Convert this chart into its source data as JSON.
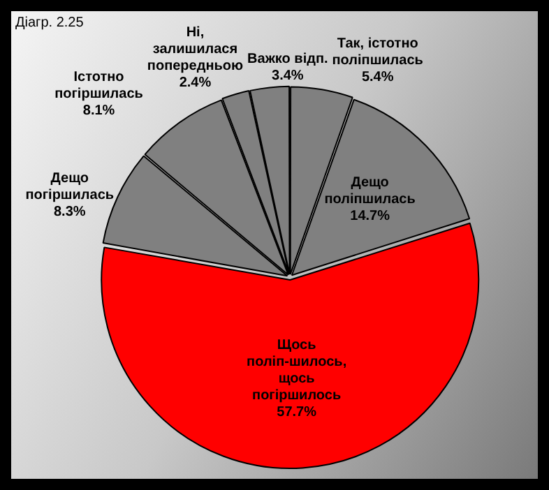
{
  "chart_data": {
    "type": "pie",
    "title": "Діагр. 2.25",
    "categories": [
      "Так, істотно поліпшилась",
      "Дещо поліпшилась",
      "Щось поліп-шилось, щось погіршилось",
      "Дещо погіршилась",
      "Істотно погіршилась",
      "Ні, залишилася попередньою",
      "Важко відп."
    ],
    "values": [
      5.4,
      14.7,
      57.7,
      8.3,
      8.1,
      2.4,
      3.4
    ],
    "colors": [
      "#808080",
      "#808080",
      "#ff0000",
      "#808080",
      "#808080",
      "#808080",
      "#808080"
    ],
    "value_labels": [
      "5.4%",
      "14.7%",
      "57.7%",
      "8.3%",
      "8.1%",
      "2.4%",
      "3.4%"
    ],
    "legend": false
  }
}
